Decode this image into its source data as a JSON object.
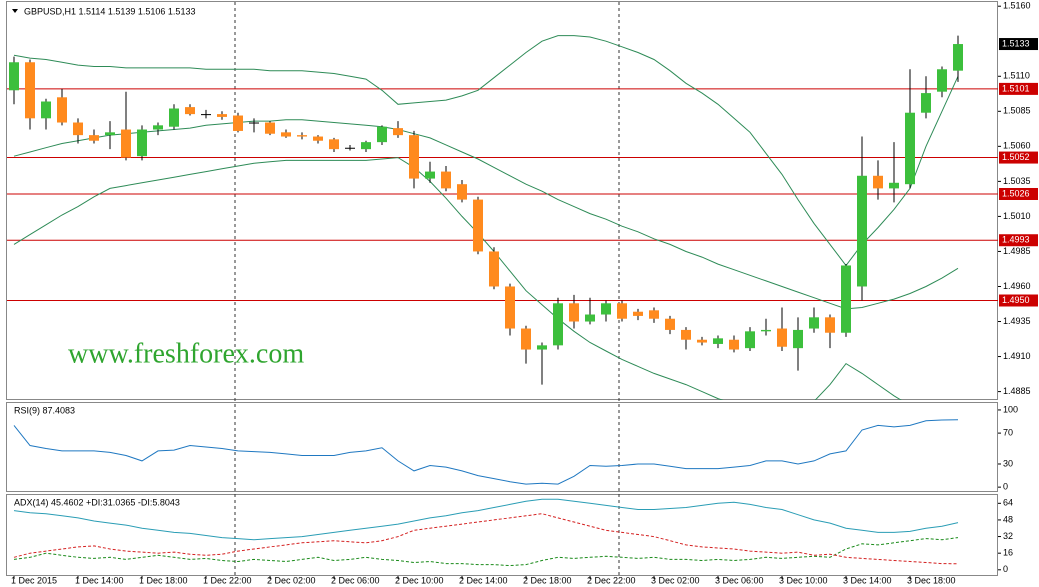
{
  "header": "GBPUSD,H1  1.5114 1.5139 1.5106 1.5133",
  "watermark": "www.freshforex.com",
  "chart_data": [
    {
      "type": "candlestick",
      "categories": [
        "1 Dec 2015",
        null,
        null,
        null,
        "1 Dec 14:00",
        null,
        null,
        null,
        "1 Dec 18:00",
        null,
        null,
        null,
        "1 Dec 22:00",
        null,
        null,
        null,
        "2 Dec 02:00",
        null,
        null,
        null,
        "2 Dec 06:00",
        null,
        null,
        null,
        "2 Dec 10:00",
        null,
        null,
        null,
        "2 Dec 14:00",
        null,
        null,
        null,
        "2 Dec 18:00",
        null,
        null,
        null,
        "2 Dec 22:00",
        null,
        null,
        null,
        "3 Dec 02:00",
        null,
        null,
        null,
        "3 Dec 06:00",
        null,
        null,
        null,
        "3 Dec 10:00",
        null,
        null,
        null,
        "3 Dec 14:00",
        null,
        null,
        null,
        "3 Dec 18:00",
        null,
        null,
        null
      ],
      "open": [
        1.51,
        1.512,
        1.508,
        1.5095,
        1.5077,
        1.5068,
        1.5068,
        1.5072,
        1.5053,
        1.5072,
        1.5074,
        1.5088,
        1.5083,
        1.5083,
        1.5082,
        1.5077,
        1.5077,
        1.507,
        1.5068,
        1.5067,
        1.5065,
        1.5059,
        1.5058,
        1.5063,
        1.5073,
        1.5068,
        1.5037,
        1.5042,
        1.5033,
        1.5022,
        1.4985,
        1.496,
        1.493,
        1.4915,
        1.4918,
        1.4948,
        1.4935,
        1.494,
        1.4948,
        1.4942,
        1.4943,
        1.4937,
        1.4929,
        1.4922,
        1.4919,
        1.4922,
        1.4916,
        1.4928,
        1.493,
        1.4916,
        1.493,
        1.4938,
        1.4927,
        1.496,
        1.5039,
        1.503,
        1.5033,
        1.5084,
        1.5099,
        1.5114
      ],
      "high": [
        1.5124,
        1.5122,
        1.5094,
        1.5101,
        1.508,
        1.5072,
        1.5078,
        1.5099,
        1.5075,
        1.5077,
        1.509,
        1.509,
        1.5086,
        1.5085,
        1.5084,
        1.508,
        1.5078,
        1.5072,
        1.507,
        1.5068,
        1.5066,
        1.5061,
        1.5064,
        1.5075,
        1.5078,
        1.5071,
        1.5049,
        1.5046,
        1.5036,
        1.5024,
        1.4988,
        1.4962,
        1.4932,
        1.492,
        1.4952,
        1.4954,
        1.4952,
        1.495,
        1.495,
        1.4944,
        1.4945,
        1.4939,
        1.4931,
        1.4924,
        1.4925,
        1.4925,
        1.4931,
        1.4937,
        1.4945,
        1.4938,
        1.4945,
        1.494,
        1.4976,
        1.5067,
        1.505,
        1.5063,
        1.5115,
        1.511,
        1.5117,
        1.5139
      ],
      "low": [
        1.509,
        1.5072,
        1.5072,
        1.5075,
        1.5062,
        1.5062,
        1.5058,
        1.505,
        1.505,
        1.5068,
        1.5072,
        1.5082,
        1.508,
        1.5079,
        1.507,
        1.507,
        1.5068,
        1.5066,
        1.5065,
        1.5062,
        1.5056,
        1.5057,
        1.5056,
        1.5061,
        1.5066,
        1.503,
        1.5034,
        1.5028,
        1.502,
        1.4983,
        1.4958,
        1.4925,
        1.4905,
        1.489,
        1.4915,
        1.493,
        1.4933,
        1.4935,
        1.4935,
        1.4936,
        1.4934,
        1.4926,
        1.4915,
        1.4918,
        1.4916,
        1.4913,
        1.4914,
        1.4925,
        1.4914,
        1.49,
        1.4927,
        1.4916,
        1.4924,
        1.495,
        1.5022,
        1.502,
        1.503,
        1.508,
        1.5095,
        1.5106
      ],
      "close": [
        1.512,
        1.508,
        1.5092,
        1.5077,
        1.5068,
        1.5064,
        1.507,
        1.5052,
        1.5072,
        1.5075,
        1.5087,
        1.5083,
        1.5083,
        1.5081,
        1.5071,
        1.5077,
        1.5069,
        1.5067,
        1.5067,
        1.5064,
        1.5058,
        1.5059,
        1.5063,
        1.5074,
        1.5068,
        1.5037,
        1.5042,
        1.503,
        1.5022,
        1.4985,
        1.496,
        1.493,
        1.4915,
        1.4918,
        1.4948,
        1.4935,
        1.494,
        1.4948,
        1.4937,
        1.4939,
        1.4937,
        1.4929,
        1.4922,
        1.492,
        1.4923,
        1.4915,
        1.4928,
        1.4929,
        1.4917,
        1.4929,
        1.4938,
        1.4927,
        1.4975,
        1.5039,
        1.503,
        1.5034,
        1.5084,
        1.5098,
        1.5115,
        1.5133
      ],
      "up_color": "#3cbf3c",
      "down_color": "#ff8a1e",
      "wick_color": "#000000",
      "band_color": "#2e8b57",
      "bands": [
        {
          "values": [
            1.5125,
            1.5123,
            1.5122,
            1.512,
            1.5118,
            1.5117,
            1.5117,
            1.5116,
            1.5116,
            1.5116,
            1.5116,
            1.5116,
            1.5115,
            1.5115,
            1.5115,
            1.5115,
            1.5114,
            1.5114,
            1.5114,
            1.5113,
            1.5112,
            1.511,
            1.5108,
            1.51,
            1.509,
            1.5091,
            1.5092,
            1.5093,
            1.5096,
            1.51,
            1.5109,
            1.5118,
            1.5127,
            1.5135,
            1.5139,
            1.5139,
            1.5138,
            1.5135,
            1.5131,
            1.5127,
            1.5122,
            1.5114,
            1.5105,
            1.5098,
            1.509,
            1.508,
            1.507,
            1.5055,
            1.504,
            1.5022,
            1.5005,
            1.499,
            1.4975,
            1.499,
            1.5002,
            1.5015,
            1.503,
            1.506,
            1.5085,
            1.511
          ]
        },
        {
          "values": [
            1.5053,
            1.5056,
            1.5059,
            1.5062,
            1.5064,
            1.5066,
            1.5068,
            1.5069,
            1.507,
            1.5071,
            1.5072,
            1.5073,
            1.5075,
            1.5076,
            1.5077,
            1.5078,
            1.5078,
            1.5079,
            1.5079,
            1.5078,
            1.5077,
            1.5076,
            1.5075,
            1.5074,
            1.5072,
            1.5069,
            1.5066,
            1.5061,
            1.5056,
            1.5051,
            1.5045,
            1.5039,
            1.5033,
            1.5028,
            1.5022,
            1.5017,
            1.5012,
            1.5008,
            1.5003,
            1.4999,
            1.4994,
            1.499,
            1.4985,
            1.4981,
            1.4976,
            1.4972,
            1.4968,
            1.4964,
            1.496,
            1.4956,
            1.4952,
            1.4948,
            1.4944,
            1.4945,
            1.4948,
            1.4951,
            1.4955,
            1.496,
            1.4966,
            1.4973
          ]
        },
        {
          "values": [
            1.499,
            1.4997,
            1.5004,
            1.5011,
            1.5017,
            1.5024,
            1.503,
            1.5032,
            1.5034,
            1.5036,
            1.5038,
            1.504,
            1.5042,
            1.5044,
            1.5046,
            1.5048,
            1.5049,
            1.505,
            1.505,
            1.505,
            1.505,
            1.505,
            1.505,
            1.5051,
            1.5052,
            1.5045,
            1.5035,
            1.5023,
            1.501,
            1.4998,
            1.4985,
            1.4971,
            1.4957,
            1.4947,
            1.4937,
            1.4928,
            1.492,
            1.4914,
            1.4908,
            1.4903,
            1.4898,
            1.4894,
            1.489,
            1.4885,
            1.488,
            1.4876,
            1.4873,
            1.4871,
            1.487,
            1.4872,
            1.4878,
            1.489,
            1.4905,
            1.4898,
            1.489,
            1.4882,
            1.4875,
            1.487,
            1.4867,
            1.4865
          ]
        }
      ],
      "level_color": "#cc0000",
      "levels": [
        1.5101,
        1.5052,
        1.5026,
        1.4993,
        {
          "value": 1.495,
          "label": "1.4950"
        }
      ],
      "current_price": 1.5133,
      "ylim": [
        1.4879,
        1.5163
      ],
      "yticks": [
        {
          "value": 1.516,
          "label": "1.5160"
        },
        {
          "value": 1.511,
          "label": "1.5110"
        },
        1.5085,
        {
          "value": 1.506,
          "label": "1.5060"
        },
        1.5035,
        {
          "value": 1.501,
          "label": "1.5010"
        },
        1.4985,
        {
          "value": 1.496,
          "label": "1.4960"
        },
        1.4935,
        {
          "value": 1.491,
          "label": "1.4910"
        },
        1.4885
      ]
    },
    {
      "type": "line",
      "title": "RSI(9) 87.4083",
      "series": [
        {
          "color": "#1f78c1",
          "values": [
            80,
            54,
            50,
            47,
            47,
            47,
            45,
            41,
            34,
            47,
            48,
            54,
            52,
            50,
            47,
            46,
            45,
            43,
            41,
            41,
            41,
            45,
            47,
            51,
            34,
            21,
            28,
            26,
            21,
            15,
            11,
            7,
            4,
            5,
            4,
            14,
            28,
            27,
            28,
            30,
            30,
            27,
            24,
            24,
            24,
            26,
            28,
            34,
            34,
            30,
            34,
            43,
            47,
            74,
            80,
            78,
            80,
            86,
            87,
            87.4083
          ]
        }
      ],
      "ylim": [
        -5,
        109
      ],
      "yticks": [
        100,
        70,
        30,
        0
      ]
    },
    {
      "type": "line",
      "title": "ADX(14) 45.4602 +DI:31.0365 -DI:5.8043",
      "series": [
        {
          "color": "#2a9db5",
          "values": [
            57,
            55,
            54,
            52,
            50,
            47,
            45,
            43,
            40,
            38,
            36,
            35,
            33,
            31,
            30,
            29,
            30,
            31,
            32,
            34,
            36,
            38,
            40,
            42,
            44,
            47,
            50,
            52,
            55,
            57,
            60,
            63,
            66,
            68,
            68,
            66,
            64,
            62,
            60,
            58,
            58,
            59,
            60,
            62,
            64,
            65,
            63,
            60,
            58,
            53,
            48,
            45,
            40,
            38,
            36,
            36,
            37,
            40,
            42,
            45.4602
          ]
        },
        {
          "color": "#1a8a1a",
          "dashed": true,
          "values": [
            10,
            12,
            16,
            14,
            12,
            11,
            12,
            10,
            12,
            14,
            12,
            10,
            11,
            9,
            8,
            10,
            9,
            8,
            10,
            12,
            9,
            10,
            12,
            10,
            9,
            7,
            8,
            6,
            6,
            5,
            5,
            4,
            5,
            9,
            12,
            11,
            12,
            13,
            12,
            11,
            12,
            10,
            10,
            9,
            10,
            9,
            10,
            12,
            11,
            12,
            13,
            12,
            20,
            25,
            24,
            26,
            28,
            30,
            29,
            31.0365
          ]
        },
        {
          "color": "#d42020",
          "dashed": true,
          "values": [
            12,
            16,
            18,
            20,
            22,
            23,
            20,
            18,
            17,
            16,
            17,
            15,
            14,
            15,
            18,
            20,
            22,
            24,
            26,
            27,
            28,
            27,
            26,
            28,
            32,
            38,
            40,
            42,
            44,
            46,
            48,
            50,
            52,
            54,
            50,
            46,
            42,
            38,
            36,
            34,
            32,
            28,
            24,
            22,
            21,
            20,
            18,
            17,
            16,
            17,
            14,
            15,
            12,
            11,
            10,
            9,
            8,
            7,
            6,
            5.8043
          ]
        }
      ],
      "ylim": [
        -5,
        72
      ],
      "yticks": [
        64,
        48,
        32,
        16,
        0
      ]
    }
  ]
}
